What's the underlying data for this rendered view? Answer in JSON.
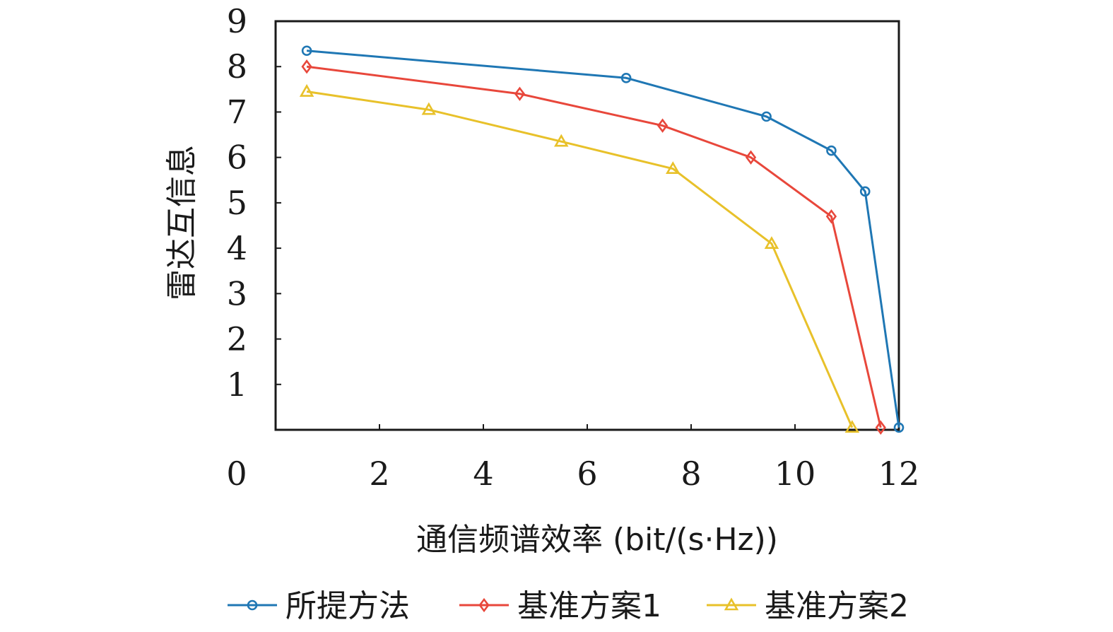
{
  "chart_data": {
    "type": "line",
    "xlabel": "通信频谱效率 (bit/(s·Hz))",
    "ylabel": "雷达互信息",
    "xlim": [
      0,
      12
    ],
    "ylim": [
      0,
      9
    ],
    "x_ticks": [
      0,
      2,
      4,
      6,
      8,
      10,
      12
    ],
    "y_ticks": [
      1,
      2,
      3,
      4,
      5,
      6,
      7,
      8,
      9
    ],
    "grid": false,
    "legend_position": "bottom",
    "series": [
      {
        "name": "所提方法",
        "color": "#1f77b4",
        "marker": "circle",
        "x": [
          0.6,
          6.75,
          9.45,
          10.7,
          11.35,
          12.0
        ],
        "y": [
          8.35,
          7.75,
          6.9,
          6.15,
          5.25,
          0.05
        ]
      },
      {
        "name": "基准方案1",
        "color": "#e8473b",
        "marker": "diamond",
        "x": [
          0.6,
          4.7,
          7.45,
          9.15,
          10.7,
          11.65
        ],
        "y": [
          8.0,
          7.4,
          6.7,
          6.0,
          4.7,
          0.05
        ]
      },
      {
        "name": "基准方案2",
        "color": "#e8c12a",
        "marker": "triangle",
        "x": [
          0.6,
          2.95,
          5.5,
          7.65,
          9.55,
          11.1
        ],
        "y": [
          7.45,
          7.05,
          6.35,
          5.75,
          4.1,
          0.05
        ]
      }
    ]
  }
}
